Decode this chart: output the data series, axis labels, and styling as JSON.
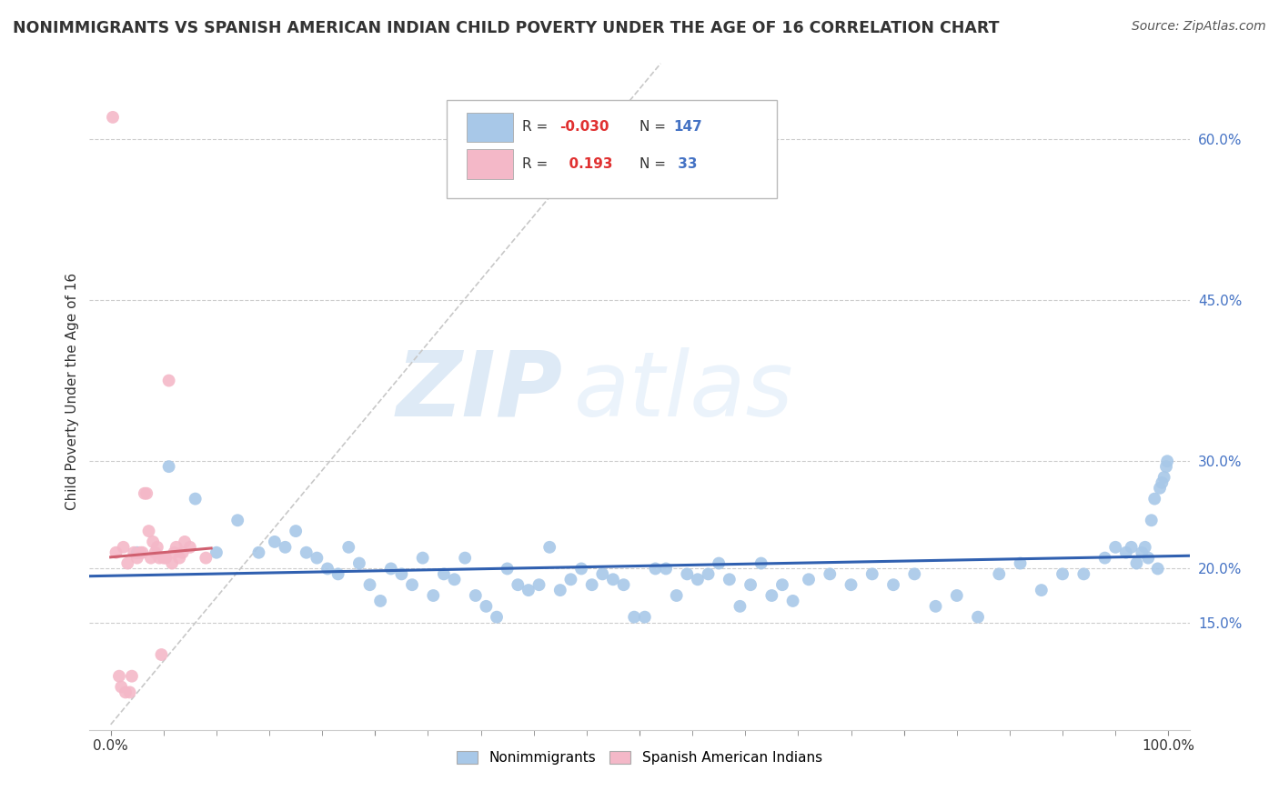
{
  "title": "NONIMMIGRANTS VS SPANISH AMERICAN INDIAN CHILD POVERTY UNDER THE AGE OF 16 CORRELATION CHART",
  "source": "Source: ZipAtlas.com",
  "ylabel": "Child Poverty Under the Age of 16",
  "xlim": [
    -0.02,
    1.02
  ],
  "ylim": [
    0.05,
    0.68
  ],
  "yticks": [
    0.15,
    0.2,
    0.3,
    0.45,
    0.6
  ],
  "ytick_labels": [
    "15.0%",
    "20.0%",
    "30.0%",
    "45.0%",
    "60.0%"
  ],
  "xticks": [
    0.0,
    0.25,
    0.5,
    0.75,
    1.0
  ],
  "xtick_labels": [
    "0.0%",
    "",
    "",
    "",
    "100.0%"
  ],
  "r_blue": -0.03,
  "n_blue": 147,
  "r_pink": 0.193,
  "n_pink": 33,
  "blue_color": "#A8C8E8",
  "pink_color": "#F4B8C8",
  "blue_line_color": "#3060B0",
  "pink_line_color": "#D06070",
  "watermark_zip": "ZIP",
  "watermark_atlas": "atlas",
  "blue_scatter_x": [
    0.025,
    0.055,
    0.08,
    0.1,
    0.12,
    0.14,
    0.155,
    0.165,
    0.175,
    0.185,
    0.195,
    0.205,
    0.215,
    0.225,
    0.235,
    0.245,
    0.255,
    0.265,
    0.275,
    0.285,
    0.295,
    0.305,
    0.315,
    0.325,
    0.335,
    0.345,
    0.355,
    0.365,
    0.375,
    0.385,
    0.395,
    0.405,
    0.415,
    0.425,
    0.435,
    0.445,
    0.455,
    0.465,
    0.475,
    0.485,
    0.495,
    0.505,
    0.515,
    0.525,
    0.535,
    0.545,
    0.555,
    0.565,
    0.575,
    0.585,
    0.595,
    0.605,
    0.615,
    0.625,
    0.635,
    0.645,
    0.66,
    0.68,
    0.7,
    0.72,
    0.74,
    0.76,
    0.78,
    0.8,
    0.82,
    0.84,
    0.86,
    0.88,
    0.9,
    0.92,
    0.94,
    0.95,
    0.96,
    0.965,
    0.97,
    0.975,
    0.978,
    0.981,
    0.984,
    0.987,
    0.99,
    0.992,
    0.994,
    0.996,
    0.998,
    0.999
  ],
  "blue_scatter_y": [
    0.215,
    0.295,
    0.265,
    0.215,
    0.245,
    0.215,
    0.225,
    0.22,
    0.235,
    0.215,
    0.21,
    0.2,
    0.195,
    0.22,
    0.205,
    0.185,
    0.17,
    0.2,
    0.195,
    0.185,
    0.21,
    0.175,
    0.195,
    0.19,
    0.21,
    0.175,
    0.165,
    0.155,
    0.2,
    0.185,
    0.18,
    0.185,
    0.22,
    0.18,
    0.19,
    0.2,
    0.185,
    0.195,
    0.19,
    0.185,
    0.155,
    0.155,
    0.2,
    0.2,
    0.175,
    0.195,
    0.19,
    0.195,
    0.205,
    0.19,
    0.165,
    0.185,
    0.205,
    0.175,
    0.185,
    0.17,
    0.19,
    0.195,
    0.185,
    0.195,
    0.185,
    0.195,
    0.165,
    0.175,
    0.155,
    0.195,
    0.205,
    0.18,
    0.195,
    0.195,
    0.21,
    0.22,
    0.215,
    0.22,
    0.205,
    0.215,
    0.22,
    0.21,
    0.245,
    0.265,
    0.2,
    0.275,
    0.28,
    0.285,
    0.295,
    0.3
  ],
  "pink_scatter_x": [
    0.002,
    0.005,
    0.008,
    0.01,
    0.012,
    0.014,
    0.016,
    0.018,
    0.02,
    0.022,
    0.025,
    0.028,
    0.03,
    0.032,
    0.034,
    0.036,
    0.038,
    0.04,
    0.042,
    0.044,
    0.046,
    0.048,
    0.05,
    0.052,
    0.055,
    0.058,
    0.06,
    0.062,
    0.065,
    0.068,
    0.07,
    0.075,
    0.09
  ],
  "pink_scatter_y": [
    0.62,
    0.215,
    0.1,
    0.09,
    0.22,
    0.085,
    0.205,
    0.085,
    0.1,
    0.215,
    0.21,
    0.215,
    0.215,
    0.27,
    0.27,
    0.235,
    0.21,
    0.225,
    0.215,
    0.22,
    0.21,
    0.12,
    0.21,
    0.21,
    0.375,
    0.205,
    0.215,
    0.22,
    0.21,
    0.215,
    0.225,
    0.22,
    0.21
  ],
  "ref_line_x": [
    0.0,
    0.52
  ],
  "ref_line_y": [
    0.055,
    0.67
  ]
}
